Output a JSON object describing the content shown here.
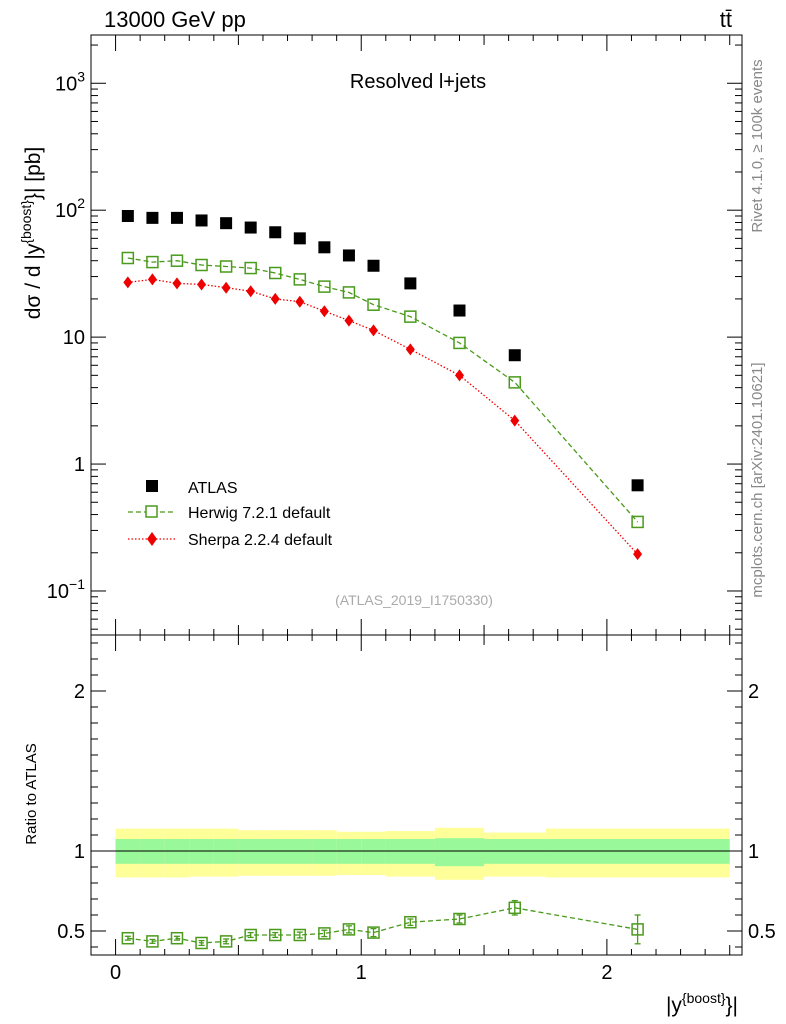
{
  "header": {
    "left": "13000 GeV pp",
    "right": "tt̄"
  },
  "side_text": {
    "rivet": "Rivet 4.1.0, ≥ 100k events",
    "mcplots": "mcplots.cern.ch [arXiv:2401.10621]"
  },
  "chart_data": [
    {
      "type": "scatter",
      "panel": "main",
      "title": "Resolved l+jets",
      "analysis_tag": "(ATLAS_2019_I1750330)",
      "xlabel": "|y^{boost}|",
      "xlabel_main": "|y",
      "xlabel_sup": "{boost}",
      "xlabel_end": "}|",
      "ylabel": "dσ / d |y^{boost}| [pb]",
      "ylabel_pre": "dσ / d |y",
      "ylabel_sup": "{boost}",
      "ylabel_post": "}| [pb]",
      "yscale": "log",
      "xlim": [
        -0.1,
        2.55
      ],
      "ylim": [
        0.045,
        2400
      ],
      "y_ticks": [
        {
          "value": 1000,
          "label": "10",
          "exp": "3"
        },
        {
          "value": 100,
          "label": "10",
          "exp": "2"
        },
        {
          "value": 10,
          "label": "10",
          "exp": ""
        },
        {
          "value": 1,
          "label": "1",
          "exp": ""
        },
        {
          "value": 0.1,
          "label": "10",
          "exp": "−1"
        }
      ],
      "series": [
        {
          "name": "ATLAS",
          "legend_label": "ATLAS",
          "marker": "square-filled",
          "color": "#000000",
          "x": [
            0.05,
            0.15,
            0.25,
            0.35,
            0.45,
            0.55,
            0.65,
            0.75,
            0.85,
            0.95,
            1.05,
            1.2,
            1.4,
            1.625,
            2.125
          ],
          "y": [
            90,
            87,
            87,
            83,
            79,
            73,
            67,
            60,
            51,
            44,
            36.5,
            26.5,
            16.2,
            7.2,
            0.68
          ]
        },
        {
          "name": "Herwig 7.2.1 default",
          "legend_label": "Herwig 7.2.1 default",
          "marker": "square-open",
          "line": "dashed",
          "color": "#4a9a1c",
          "x": [
            0.05,
            0.15,
            0.25,
            0.35,
            0.45,
            0.55,
            0.65,
            0.75,
            0.85,
            0.95,
            1.05,
            1.2,
            1.4,
            1.625,
            2.125
          ],
          "y": [
            42,
            39,
            40,
            37,
            36,
            35,
            32,
            28.5,
            25,
            22.5,
            18,
            14.5,
            9,
            4.4,
            0.35
          ]
        },
        {
          "name": "Sherpa 2.2.4 default",
          "legend_label": "Sherpa 2.2.4 default",
          "marker": "diamond-filled",
          "line": "dotted",
          "color": "#ee0000",
          "x": [
            0.05,
            0.15,
            0.25,
            0.35,
            0.45,
            0.55,
            0.65,
            0.75,
            0.85,
            0.95,
            1.05,
            1.2,
            1.4,
            1.625,
            2.125
          ],
          "y": [
            27,
            28.5,
            26.5,
            26,
            24.5,
            23,
            20,
            19,
            16,
            13.5,
            11.3,
            8,
            5,
            2.2,
            0.195
          ]
        }
      ]
    },
    {
      "type": "scatter",
      "panel": "ratio",
      "ylabel": "Ratio to ATLAS",
      "xlim": [
        -0.1,
        2.55
      ],
      "ylim": [
        0.35,
        2.35
      ],
      "x_ticks": [
        {
          "value": 0,
          "label": "0"
        },
        {
          "value": 1,
          "label": "1"
        },
        {
          "value": 2,
          "label": "2"
        }
      ],
      "y_ticks": [
        {
          "value": 0.5,
          "label": "0.5"
        },
        {
          "value": 1,
          "label": "1"
        },
        {
          "value": 2,
          "label": "2"
        }
      ],
      "bands": {
        "bin_edges": [
          0.0,
          0.1,
          0.2,
          0.3,
          0.4,
          0.5,
          0.6,
          0.7,
          0.8,
          0.9,
          1.0,
          1.1,
          1.3,
          1.5,
          1.75,
          2.5
        ],
        "inner_up": [
          0.075,
          0.075,
          0.075,
          0.075,
          0.075,
          0.075,
          0.075,
          0.075,
          0.075,
          0.075,
          0.075,
          0.075,
          0.08,
          0.075,
          0.075
        ],
        "inner_down": [
          0.08,
          0.08,
          0.08,
          0.08,
          0.08,
          0.08,
          0.08,
          0.08,
          0.08,
          0.08,
          0.08,
          0.08,
          0.095,
          0.08,
          0.08
        ],
        "outer_up": [
          0.14,
          0.14,
          0.14,
          0.14,
          0.14,
          0.13,
          0.13,
          0.13,
          0.13,
          0.12,
          0.12,
          0.125,
          0.145,
          0.115,
          0.14
        ],
        "outer_down": [
          0.165,
          0.165,
          0.165,
          0.16,
          0.16,
          0.155,
          0.155,
          0.155,
          0.155,
          0.15,
          0.15,
          0.16,
          0.18,
          0.16,
          0.165
        ],
        "inner_color": "#99f899",
        "outer_color": "#ffff99"
      },
      "series": [
        {
          "name": "Herwig 7.2.1 default",
          "marker": "square-open",
          "line": "dashed",
          "color": "#4a9a1c",
          "x": [
            0.05,
            0.15,
            0.25,
            0.35,
            0.45,
            0.55,
            0.65,
            0.75,
            0.85,
            0.95,
            1.05,
            1.2,
            1.4,
            1.625,
            2.125
          ],
          "y": [
            0.455,
            0.435,
            0.455,
            0.425,
            0.435,
            0.475,
            0.475,
            0.475,
            0.485,
            0.51,
            0.49,
            0.555,
            0.575,
            0.645,
            0.51
          ],
          "err": [
            0.012,
            0.012,
            0.012,
            0.015,
            0.015,
            0.015,
            0.015,
            0.018,
            0.02,
            0.022,
            0.025,
            0.02,
            0.025,
            0.045,
            0.09
          ]
        }
      ]
    }
  ]
}
